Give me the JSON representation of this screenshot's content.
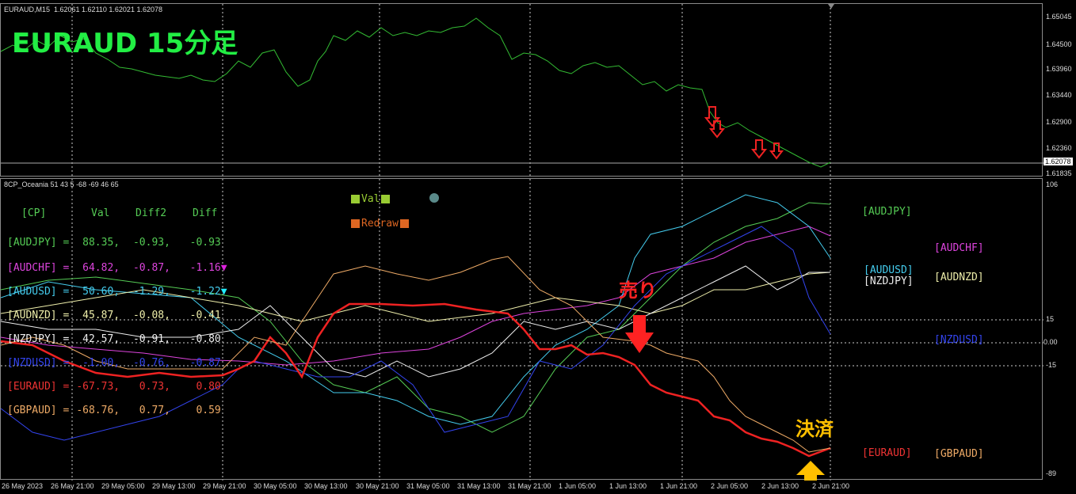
{
  "header": {
    "symbol_info": "EURAUD,M15  1.62061 1.62110 1.62021 1.62078",
    "big_title": "EURAUD 15分足"
  },
  "indicator_info": "8CP_Oceania 51 43 5 -68 -69 46 65",
  "price_axis": [
    "1.65045",
    "1.64500",
    "1.63960",
    "1.63440",
    "1.62900",
    "1.62360",
    "1.61835"
  ],
  "current_price": "1.62078",
  "indicator_axis": {
    "top": "106",
    "p15": "15",
    "zero": "0.00",
    "m15": "-15",
    "bottom": "-89"
  },
  "time_axis": [
    "26 May 2023",
    "26 May 21:00",
    "29 May 05:00",
    "29 May 13:00",
    "29 May 21:00",
    "30 May 05:00",
    "30 May 13:00",
    "30 May 21:00",
    "31 May 05:00",
    "31 May 13:00",
    "31 May 21:00",
    "1 Jun 05:00",
    "1 Jun 13:00",
    "1 Jun 21:00",
    "2 Jun 05:00",
    "2 Jun 13:00",
    "2 Jun 21:00"
  ],
  "buttons": {
    "val": "Val",
    "redraw": "Redraw"
  },
  "table": {
    "headers": [
      "[CP]",
      "Val",
      "Diff2",
      "Diff"
    ],
    "rows": [
      {
        "name": "[AUDJPY] =",
        "val": "88.35,",
        "diff2": "-0.93,",
        "diff": "-0.93",
        "color": "#55cc55"
      },
      {
        "name": "[AUDCHF] =",
        "val": "64.82,",
        "diff2": "-0.87,",
        "diff": "-1.16",
        "color": "#dd44dd"
      },
      {
        "name": "[AUDUSD] =",
        "val": "50.60,",
        "diff2": "-1.29,",
        "diff": "-1.22",
        "color": "#44ccee"
      },
      {
        "name": "[AUDNZD] =",
        "val": "45.87,",
        "diff2": "-0.08,",
        "diff": "-0.41",
        "color": "#eeeeaa"
      },
      {
        "name": "[NZDJPY] =",
        "val": "42.57,",
        "diff2": "-0.91,",
        "diff": "-0.80",
        "color": "#eeeeee"
      },
      {
        "name": "[NZDUSD] =",
        "val": "-1.00,",
        "diff2": "-0.76,",
        "diff": "-0.87",
        "color": "#3344ee"
      },
      {
        "name": "[EURAUD] =",
        "val": "-67.73,",
        "diff2": "0.73,",
        "diff": "0.80",
        "color": "#ee3333"
      },
      {
        "name": "[GBPAUD] =",
        "val": "-68.76,",
        "diff2": "0.77,",
        "diff": "0.59",
        "color": "#eeaa66"
      }
    ]
  },
  "right_labels": {
    "audjpy": "[AUDJPY]",
    "audchf": "[AUDCHF]",
    "audusd": "[AUDUSD]",
    "nzdjpy": "[NZDJPY]",
    "audnzd": "[AUDNZD]",
    "nzdusd": "[NZDUSD]",
    "euraud": "[EURAUD]",
    "gbpaud": "[GBPAUD]"
  },
  "annotations": {
    "sell": "売り",
    "close": "決済"
  }
}
